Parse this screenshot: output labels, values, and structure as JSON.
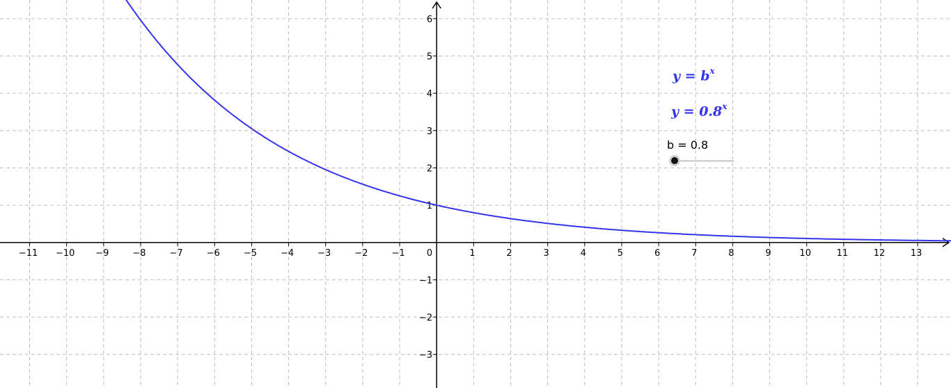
{
  "graph": {
    "x_min": -11.8,
    "x_max": 13.9,
    "y_min": -3.9,
    "y_max": 6.5,
    "grid": true,
    "x_ticks": [
      -11,
      -10,
      -9,
      -8,
      -7,
      -6,
      -5,
      -4,
      -3,
      -2,
      -1,
      1,
      2,
      3,
      4,
      5,
      6,
      7,
      8,
      9,
      10,
      11,
      12,
      13
    ],
    "y_ticks": [
      -3,
      -2,
      -1,
      1,
      2,
      3,
      4,
      5,
      6
    ],
    "origin_label": "0",
    "curve_color": "#3333ee",
    "axis_color": "#000000",
    "grid_color": "#bdbdbd"
  },
  "formulas": {
    "general_base": "y = b",
    "general_exp": "x",
    "specific_base": "y = 0.8",
    "specific_exp": "x"
  },
  "slider": {
    "label": "b = 0.8",
    "value": 0.8
  },
  "chart_data": {
    "type": "line",
    "series": [
      {
        "name": "y = 0.8^x",
        "function": "0.8^x",
        "base": 0.8
      }
    ],
    "xlim": [
      -11.8,
      13.9
    ],
    "ylim": [
      -3.9,
      6.5
    ],
    "grid": true
  }
}
